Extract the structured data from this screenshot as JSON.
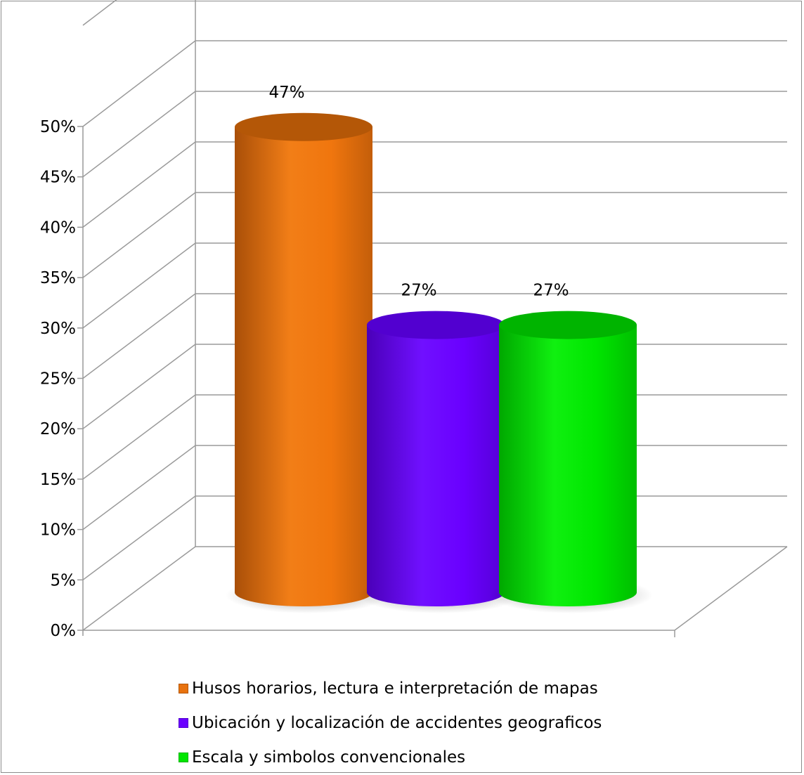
{
  "chart_data": {
    "type": "bar",
    "style": "3d-cylinder",
    "categories": [
      "Husos horarios, lectura e interpretación de mapas",
      "Ubicación y localización de accidentes geograficos",
      "Escala y simbolos convencionales"
    ],
    "values": [
      0.47,
      0.27,
      0.27
    ],
    "data_labels": [
      "47%",
      "27%",
      "27%"
    ],
    "colors": [
      "#E8720F",
      "#6A00FF",
      "#00E600"
    ],
    "ylim": [
      0,
      0.5
    ],
    "yticks": [
      "0%",
      "5%",
      "10%",
      "15%",
      "20%",
      "25%",
      "30%",
      "35%",
      "40%",
      "45%",
      "50%"
    ],
    "grid": true,
    "legend_position": "bottom"
  }
}
